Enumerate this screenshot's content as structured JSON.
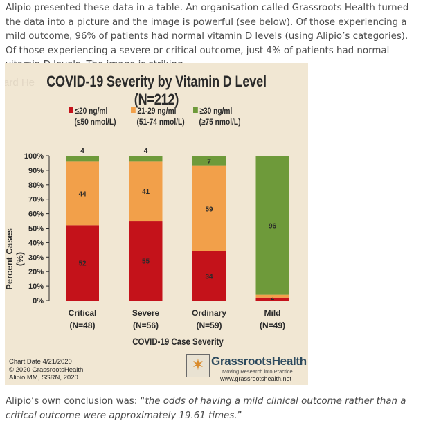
{
  "article": {
    "intro": "Alipio presented these data in a table. An organisation called Grassroots Health turned the data into a picture and the image is powerful (see below). Of those experiencing a mild outcome, 96% of patients had normal vitamin D levels (using Alipio’s categories). Of those experiencing a severe or critical outcome, just 4% of patients had normal vitamin D levels. The image is striking.",
    "conclusion_lead": "Alipio’s own conclusion was: “",
    "conclusion_quote": "the odds of having a mild clinical outcome rather than a critical outcome were approximately 19.61 times.",
    "conclusion_end": "”"
  },
  "figure": {
    "ghost_text": "ard He",
    "y_axis_label": "Percent Cases (%)",
    "credit_lines": [
      "Chart Date 4/21/2020",
      "© 2020 GrassrootsHealth",
      "Alipio MM, SSRN, 2020."
    ],
    "logo": {
      "icon": "vitruvian-man-icon",
      "name": "GrassrootsHealth",
      "tagline": "Moving Research into Practice",
      "url": "www.grassrootshealth.net"
    }
  },
  "chart_data": {
    "type": "bar",
    "stacked": true,
    "title": "COVID-19 Severity by Vitamin D Level (N=212)",
    "xlabel": "COVID-19 Case Severity",
    "ylabel": "Percent Cases (%)",
    "ylim": [
      0,
      100
    ],
    "yticks": [
      "0%",
      "10%",
      "20%",
      "30%",
      "40%",
      "50%",
      "60%",
      "70%",
      "80%",
      "90%",
      "100%"
    ],
    "categories": [
      "Critical",
      "Severe",
      "Ordinary",
      "Mild"
    ],
    "category_n": [
      "(N=48)",
      "(N=56)",
      "(N=59)",
      "(N=49)"
    ],
    "legend_position": "top",
    "series": [
      {
        "name": "≤20 ng/ml",
        "sub": "(≤50 nmol/L)",
        "color": "#c4121a",
        "values": [
          52,
          55,
          34,
          2
        ]
      },
      {
        "name": "21-29 ng/ml",
        "sub": "(51-74 nmol/L)",
        "color": "#f2a04a",
        "values": [
          44,
          41,
          59,
          2
        ]
      },
      {
        "name": "≥30 ng/ml",
        "sub": "(≥75 nmol/L)",
        "color": "#6e9a3a",
        "values": [
          4,
          4,
          7,
          96
        ]
      }
    ]
  }
}
